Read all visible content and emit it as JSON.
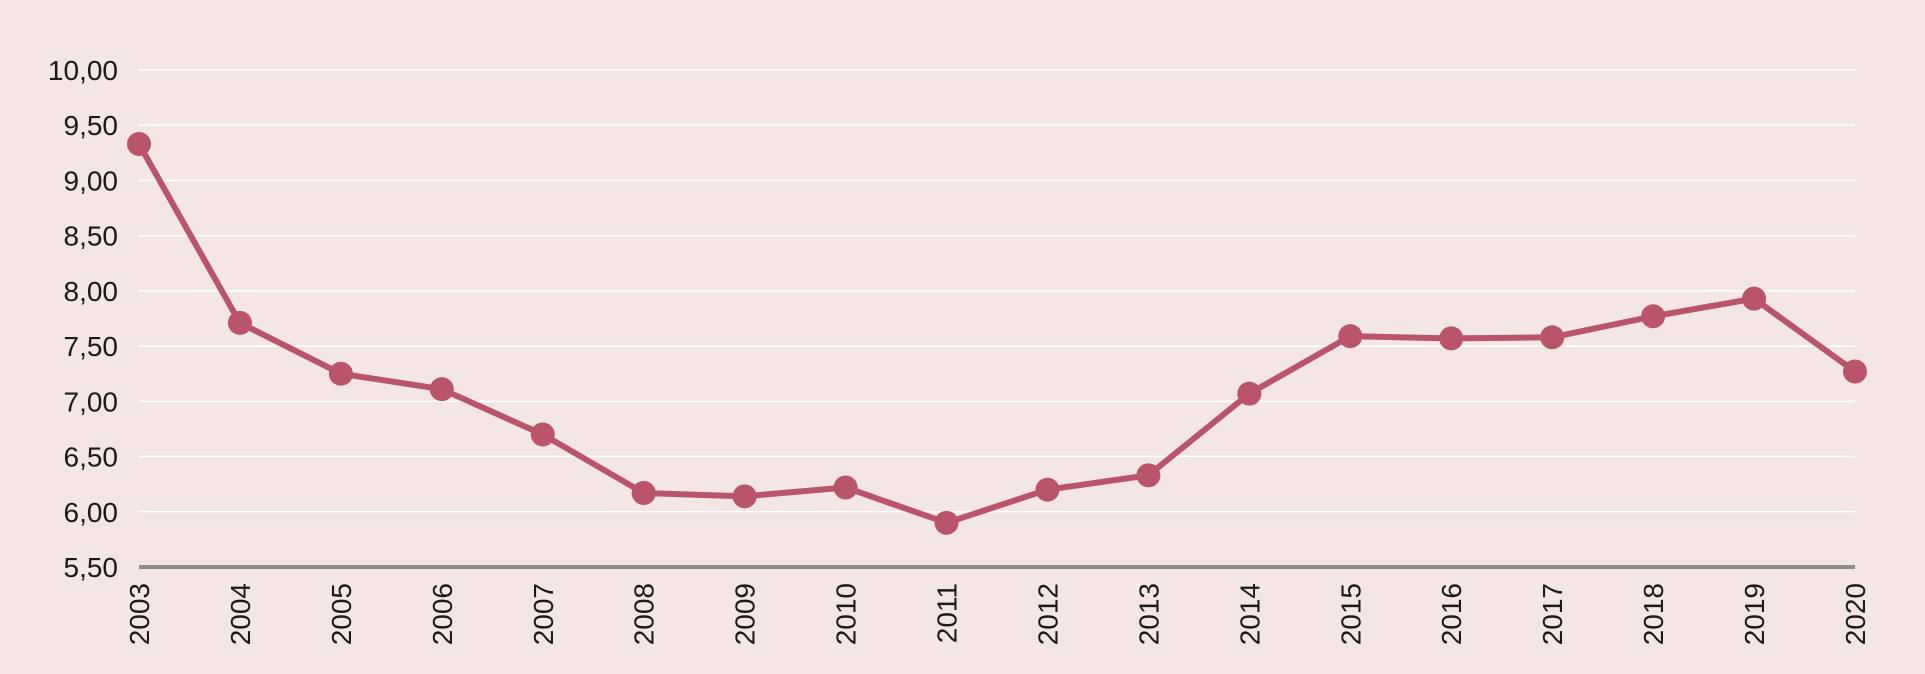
{
  "colors": {
    "background": "#F3E6E5",
    "series": "#B9546A",
    "gridline": "#FFFFFF",
    "axis": "#8C8C8C"
  },
  "chart_data": {
    "type": "line",
    "title": "",
    "xlabel": "",
    "ylabel": "",
    "ylim": [
      5.5,
      10.0
    ],
    "grid": true,
    "legend": "none",
    "y_ticks": [
      "5,50",
      "6,00",
      "6,50",
      "7,00",
      "7,50",
      "8,00",
      "8,50",
      "9,00",
      "9,50",
      "10,00"
    ],
    "x": [
      "2003",
      "2004",
      "2005",
      "2006",
      "2007",
      "2008",
      "2009",
      "2010",
      "2011",
      "2012",
      "2013",
      "2014",
      "2015",
      "2016",
      "2017",
      "2018",
      "2019",
      "2020"
    ],
    "series": [
      {
        "values": [
          9.33,
          7.71,
          7.25,
          7.11,
          6.7,
          6.17,
          6.14,
          6.22,
          5.9,
          6.2,
          6.33,
          7.07,
          7.59,
          7.57,
          7.58,
          7.77,
          7.93,
          7.27
        ]
      }
    ]
  }
}
